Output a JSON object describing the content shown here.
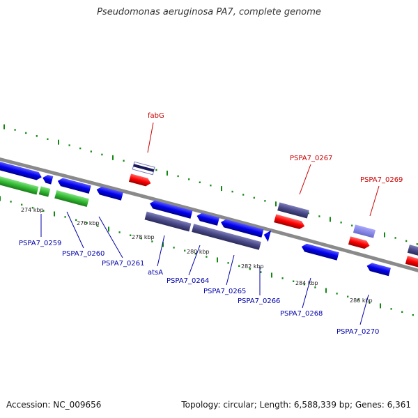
{
  "title": "Pseudomonas aeruginosa PA7, complete genome",
  "footer": {
    "accession": "Accession: NC_009656",
    "topology": "Topology: circular; Length: 6,588,339 bp; Genes: 6,361"
  },
  "colors": {
    "forward_gene": "#ff0000",
    "reverse_gene": "#0000ee",
    "rna_gene": "#33bb33",
    "dim_feature": "#4a4a8a",
    "label_red": "#cc0000",
    "label_blue": "#0000aa",
    "backbone": "#8a8a8a",
    "tick": "#118811"
  },
  "scale_labels": [
    {
      "text": "274 kbp"
    },
    {
      "text": "276 kbp"
    },
    {
      "text": "278 kbp"
    },
    {
      "text": "280 kbp"
    },
    {
      "text": "282 kbp"
    },
    {
      "text": "284 kbp"
    },
    {
      "text": "286 kbp"
    }
  ],
  "gene_labels_top": [
    {
      "text": "fabG"
    },
    {
      "text": "PSPA7_0267"
    },
    {
      "text": "PSPA7_0269"
    }
  ],
  "gene_labels_bottom": [
    {
      "text": "PSPA7_0259"
    },
    {
      "text": "PSPA7_0260"
    },
    {
      "text": "PSPA7_0261"
    },
    {
      "text": "atsA"
    },
    {
      "text": "PSPA7_0264"
    },
    {
      "text": "PSPA7_0265"
    },
    {
      "text": "PSPA7_0266"
    },
    {
      "text": "PSPA7_0268"
    },
    {
      "text": "PSPA7_0270"
    }
  ]
}
